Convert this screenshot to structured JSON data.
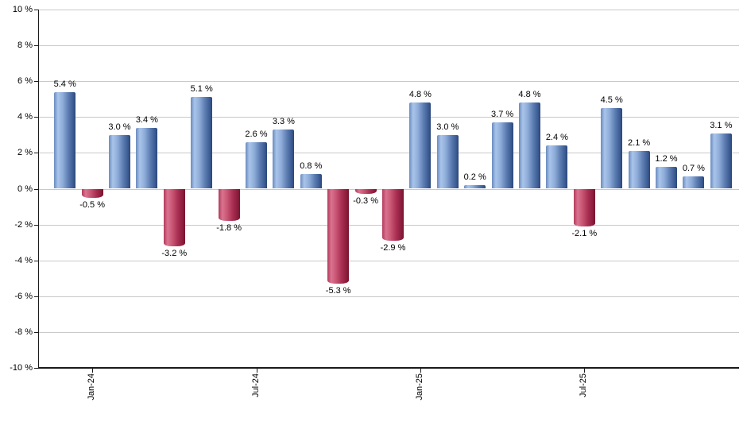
{
  "chart_data": {
    "type": "bar",
    "title": "",
    "xlabel": "",
    "ylabel": "",
    "ylim": [
      -10,
      10
    ],
    "y_tick_step": 2,
    "grid": "horizontal-on",
    "legend": "none",
    "y_tick_labels": [
      "10 %",
      "8 %",
      "6 %",
      "4 %",
      "2 %",
      "0 %",
      "-2 %",
      "-4 %",
      "-6 %",
      "-8 %",
      "-10 %"
    ],
    "x_ticks": [
      {
        "label": "Jan-24",
        "bar_index": 1
      },
      {
        "label": "Jul-24",
        "bar_index": 7
      },
      {
        "label": "Jan-25",
        "bar_index": 13
      },
      {
        "label": "Jul-25",
        "bar_index": 19
      }
    ],
    "values": [
      5.4,
      -0.5,
      3.0,
      3.4,
      -3.2,
      5.1,
      -1.8,
      2.6,
      3.3,
      0.8,
      -5.3,
      -0.3,
      -2.9,
      4.8,
      3.0,
      0.2,
      3.7,
      4.8,
      2.4,
      -2.1,
      4.5,
      2.1,
      1.2,
      0.7,
      3.1
    ],
    "value_labels": [
      "5.4 %",
      "-0.5 %",
      "3.0 %",
      "3.4 %",
      "-3.2 %",
      "5.1 %",
      "-1.8 %",
      "2.6 %",
      "3.3 %",
      "0.8 %",
      "-5.3 %",
      "-0.3 %",
      "-2.9 %",
      "4.8 %",
      "3.0 %",
      "0.2 %",
      "3.7 %",
      "4.8 %",
      "2.4 %",
      "-2.1 %",
      "4.5 %",
      "2.1 %",
      "1.2 %",
      "0.7 %",
      "3.1 %"
    ],
    "colors": {
      "positive_bar_light": "#a9c4ea",
      "positive_bar_dark": "#2d4878",
      "negative_bar_light": "#da7390",
      "negative_bar_dark": "#7a142f",
      "gridline": "#c9c9c9",
      "axis": "#1a1a1a",
      "text": "#000000",
      "background": "#ffffff"
    }
  }
}
